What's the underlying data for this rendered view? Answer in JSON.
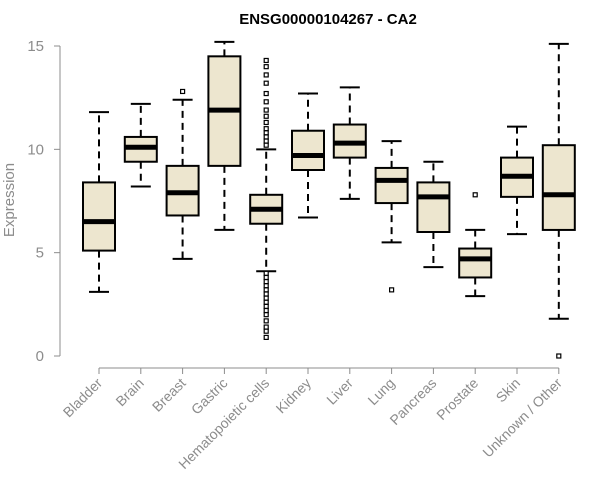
{
  "chart_data": {
    "type": "boxplot",
    "title": "ENSG00000104267 - CA2",
    "xlabel": "",
    "ylabel": "Expression",
    "ylim": [
      0,
      15
    ],
    "yticks": [
      0,
      5,
      10,
      15
    ],
    "grid": false,
    "categories": [
      "Bladder",
      "Brain",
      "Breast",
      "Gastric",
      "Hematopoietic cells",
      "Kidney",
      "Liver",
      "Lung",
      "Pancreas",
      "Prostate",
      "Skin",
      "Unknown / Other"
    ],
    "boxes": [
      {
        "name": "Bladder",
        "whisker_low": 3.1,
        "q1": 5.1,
        "median": 6.5,
        "q3": 8.4,
        "whisker_high": 11.8,
        "outliers": []
      },
      {
        "name": "Brain",
        "whisker_low": 8.2,
        "q1": 9.4,
        "median": 10.1,
        "q3": 10.6,
        "whisker_high": 12.2,
        "outliers": []
      },
      {
        "name": "Breast",
        "whisker_low": 4.7,
        "q1": 6.8,
        "median": 7.9,
        "q3": 9.2,
        "whisker_high": 12.4,
        "outliers": [
          12.8
        ]
      },
      {
        "name": "Gastric",
        "whisker_low": 6.1,
        "q1": 9.2,
        "median": 11.9,
        "q3": 14.5,
        "whisker_high": 15.2,
        "outliers": []
      },
      {
        "name": "Hematopoietic cells",
        "whisker_low": 4.1,
        "q1": 6.4,
        "median": 7.1,
        "q3": 7.8,
        "whisker_high": 10.0,
        "outliers": [
          14.3,
          14.0,
          13.6,
          13.2,
          12.7,
          12.3,
          11.9,
          11.6,
          11.3,
          11.0,
          10.8,
          10.6,
          10.4,
          10.2,
          4.0,
          3.8,
          3.6,
          3.4,
          3.2,
          3.0,
          2.8,
          2.6,
          2.4,
          2.2,
          2.0,
          1.7,
          1.4,
          1.2,
          0.9
        ]
      },
      {
        "name": "Kidney",
        "whisker_low": 6.7,
        "q1": 9.0,
        "median": 9.7,
        "q3": 10.9,
        "whisker_high": 12.7,
        "outliers": []
      },
      {
        "name": "Liver",
        "whisker_low": 7.6,
        "q1": 9.6,
        "median": 10.3,
        "q3": 11.2,
        "whisker_high": 13.0,
        "outliers": []
      },
      {
        "name": "Lung",
        "whisker_low": 5.5,
        "q1": 7.4,
        "median": 8.5,
        "q3": 9.1,
        "whisker_high": 10.4,
        "outliers": [
          3.2
        ]
      },
      {
        "name": "Pancreas",
        "whisker_low": 4.3,
        "q1": 6.0,
        "median": 7.7,
        "q3": 8.4,
        "whisker_high": 9.4,
        "outliers": []
      },
      {
        "name": "Prostate",
        "whisker_low": 2.9,
        "q1": 3.8,
        "median": 4.7,
        "q3": 5.2,
        "whisker_high": 6.1,
        "outliers": [
          7.8
        ]
      },
      {
        "name": "Skin",
        "whisker_low": 5.9,
        "q1": 7.7,
        "median": 8.7,
        "q3": 9.6,
        "whisker_high": 11.1,
        "outliers": []
      },
      {
        "name": "Unknown / Other",
        "whisker_low": 1.8,
        "q1": 6.1,
        "median": 7.8,
        "q3": 10.2,
        "whisker_high": 15.1,
        "outliers": [
          0.0
        ]
      }
    ],
    "colors": {
      "box_fill": "#ede6cf",
      "box_stroke": "#000000",
      "median": "#000000",
      "axis": "#8c8c8c",
      "title": "#000000"
    }
  }
}
